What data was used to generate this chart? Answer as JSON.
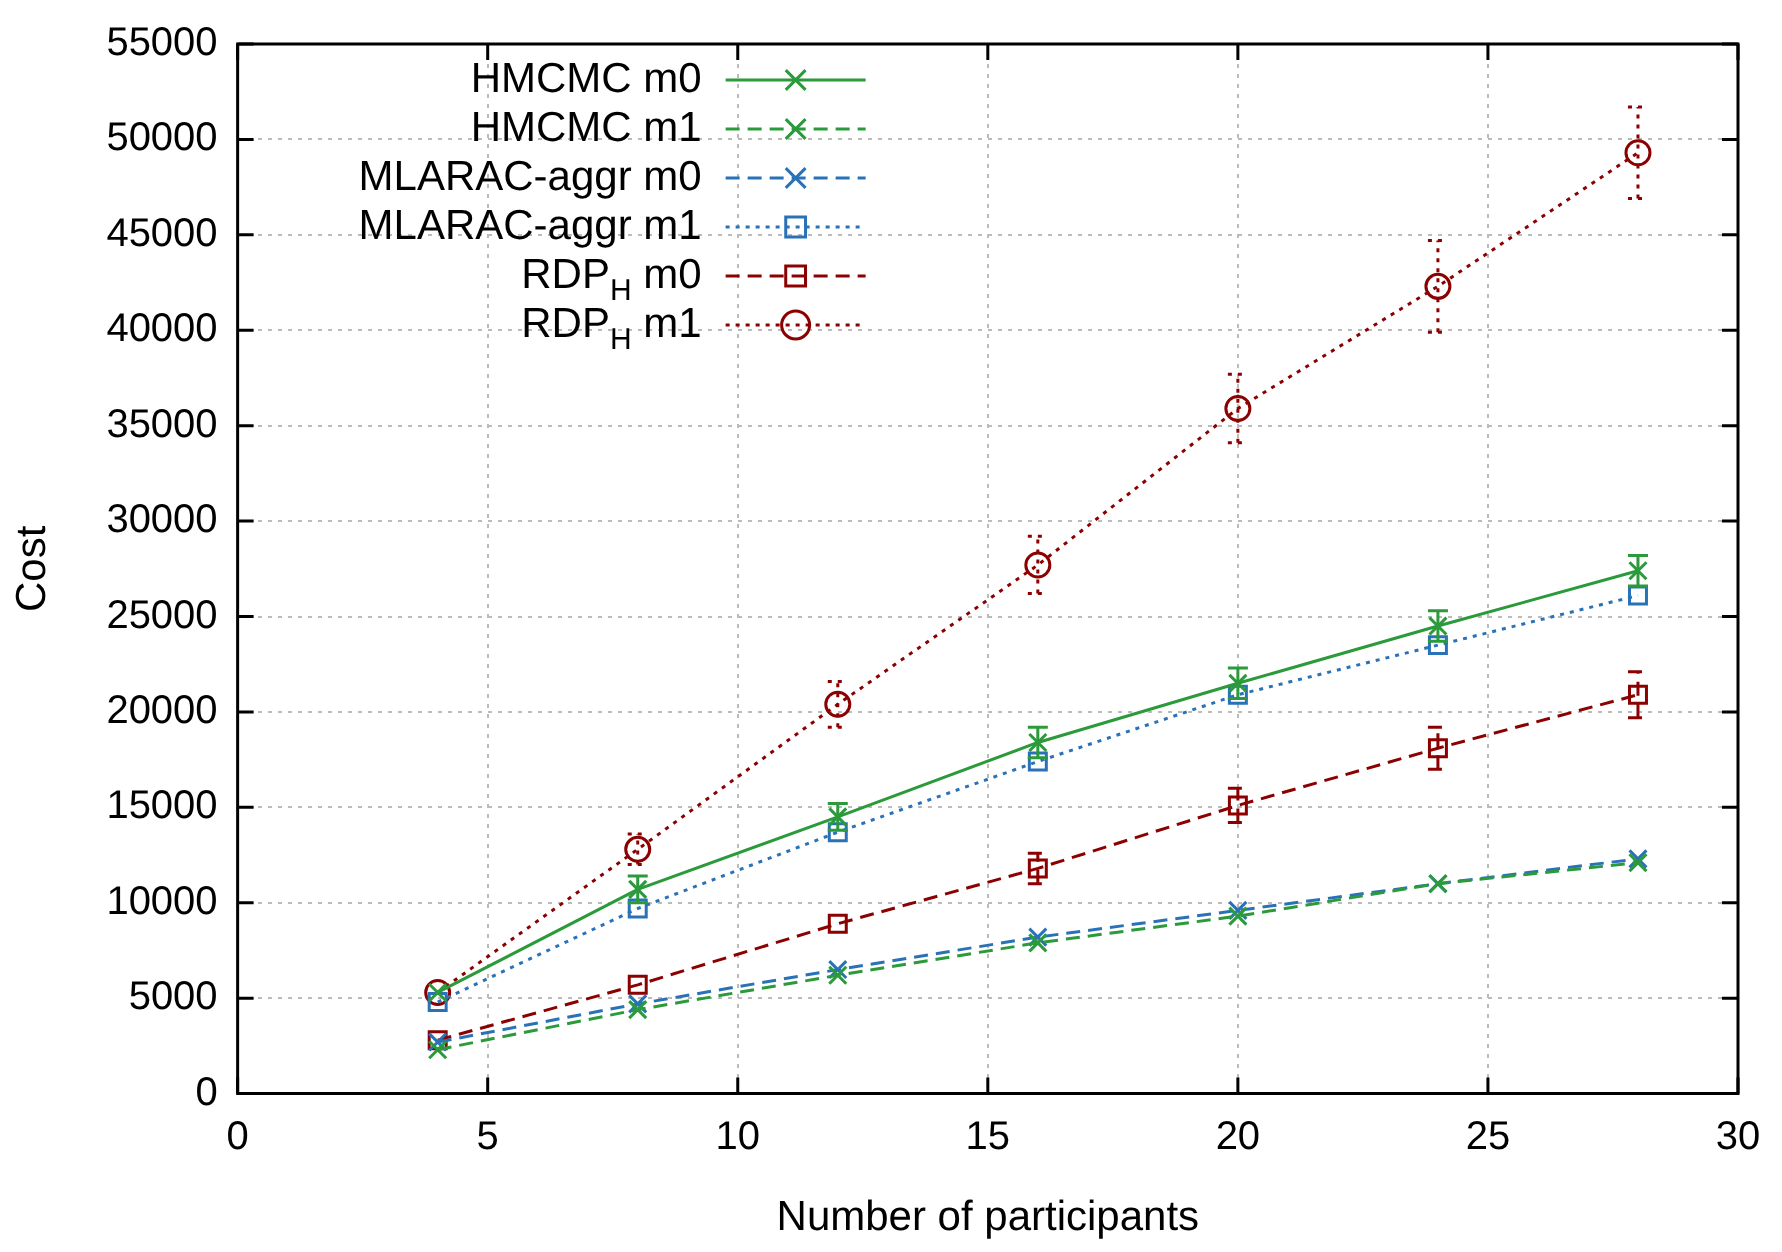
{
  "chart_data": {
    "type": "line",
    "xlabel": "Number of participants",
    "ylabel": "Cost",
    "x": [
      4,
      8,
      12,
      16,
      20,
      24,
      28
    ],
    "xlim": [
      0,
      30
    ],
    "xticks": [
      0,
      5,
      10,
      15,
      20,
      25,
      30
    ],
    "ylim": [
      0,
      55000
    ],
    "yticks": [
      0,
      5000,
      10000,
      15000,
      20000,
      25000,
      30000,
      35000,
      40000,
      45000,
      50000,
      55000
    ],
    "grid": true,
    "legend": "top left",
    "series": [
      {
        "name": "HMCMC m0",
        "color": "#2a9a3a",
        "marker": "cross",
        "line_style": "solid",
        "values": [
          5300,
          10700,
          14500,
          18400,
          21500,
          24500,
          27400
        ],
        "errors": [
          null,
          700,
          700,
          800,
          800,
          800,
          800
        ]
      },
      {
        "name": "HMCMC m1",
        "color": "#2a9a3a",
        "marker": "cross",
        "line_style": "dashed",
        "values": [
          2300,
          4400,
          6200,
          7900,
          9300,
          11000,
          12100
        ]
      },
      {
        "name": "MLARAC-aggr m0",
        "color": "#2a72b8",
        "marker": "cross",
        "line_style": "dashed",
        "values": [
          2700,
          4700,
          6500,
          8200,
          9600,
          11000,
          12300
        ]
      },
      {
        "name": "MLARAC-aggr m1",
        "color": "#2a72b8",
        "marker": "square",
        "line_style": "dotted",
        "values": [
          4800,
          9700,
          13700,
          17400,
          20900,
          23500,
          26100
        ]
      },
      {
        "name": "RDP$_{H}$ m0",
        "color": "#8b0000",
        "marker": "square",
        "line_style": "dashed",
        "values": [
          2800,
          5700,
          8900,
          11800,
          15100,
          18100,
          20900
        ],
        "errors": [
          null,
          null,
          null,
          800,
          900,
          1100,
          1200
        ]
      },
      {
        "name": "RDP$_{H}$ m1",
        "color": "#8b0000",
        "marker": "circle",
        "line_style": "dotted",
        "values": [
          5300,
          12800,
          20400,
          27700,
          35900,
          42300,
          49300
        ],
        "errors": [
          null,
          800,
          1200,
          1500,
          1800,
          2400,
          2400
        ]
      }
    ]
  }
}
